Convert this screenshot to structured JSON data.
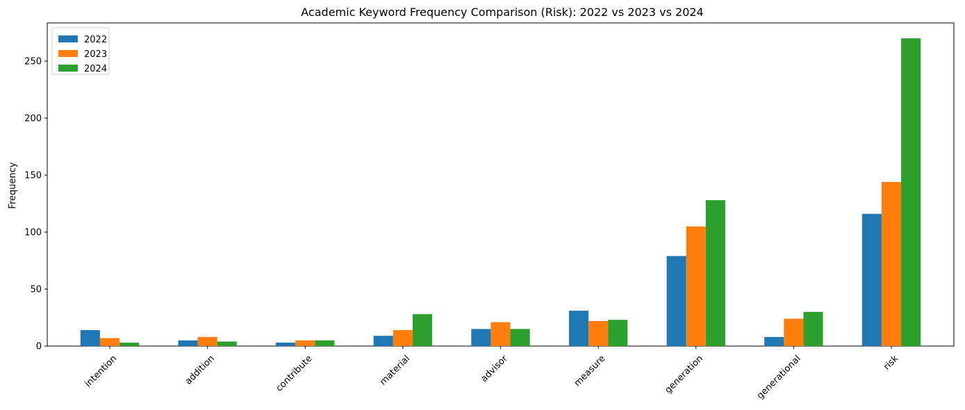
{
  "chart_data": {
    "type": "bar",
    "title": "Academic Keyword Frequency Comparison (Risk): 2022 vs 2023 vs 2024",
    "xlabel": "",
    "ylabel": "Frequency",
    "categories": [
      "intention",
      "addition",
      "contribute",
      "material",
      "advisor",
      "measure",
      "generation",
      "generational",
      "risk"
    ],
    "series": [
      {
        "name": "2022",
        "color": "#1f77b4",
        "values": [
          14,
          5,
          3,
          9,
          15,
          31,
          79,
          8,
          116
        ]
      },
      {
        "name": "2023",
        "color": "#ff7f0e",
        "values": [
          7,
          8,
          5,
          14,
          21,
          22,
          105,
          24,
          144
        ]
      },
      {
        "name": "2024",
        "color": "#2ca02c",
        "values": [
          3,
          4,
          5,
          28,
          15,
          23,
          128,
          30,
          270
        ]
      }
    ],
    "ylim": [
      0,
      283.5
    ],
    "yticks": [
      0,
      50,
      100,
      150,
      200,
      250
    ],
    "grid": false,
    "legend_position": "top-left"
  }
}
